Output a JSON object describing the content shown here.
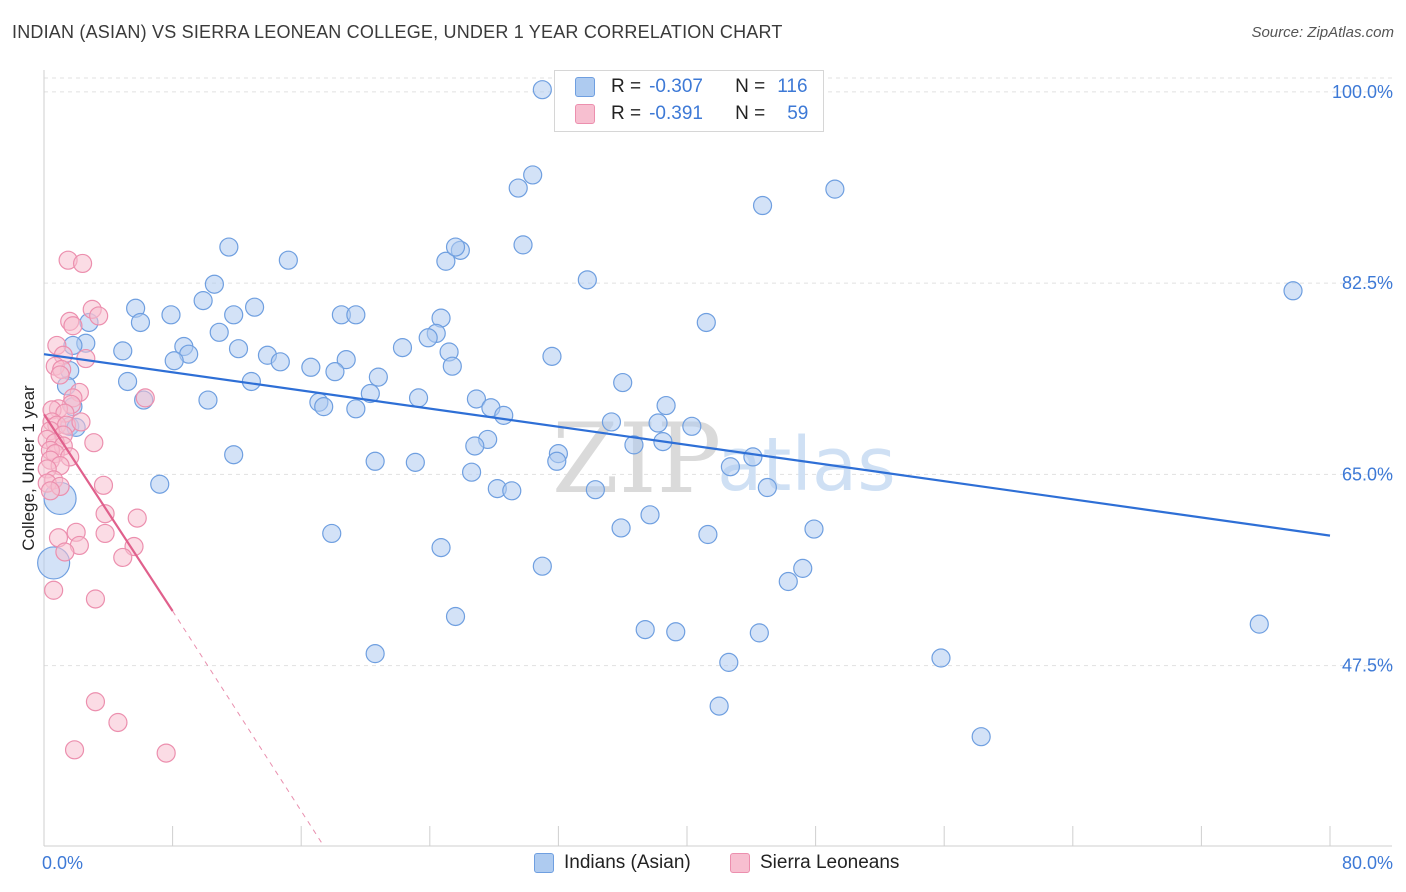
{
  "header": {
    "title": "INDIAN (ASIAN) VS SIERRA LEONEAN COLLEGE, UNDER 1 YEAR CORRELATION CHART",
    "source": "Source: ZipAtlas.com"
  },
  "watermark": {
    "zip": "ZIP",
    "atlas": "atlas"
  },
  "colors": {
    "blue_fill": "#aecbf0",
    "blue_stroke": "#6f9fe0",
    "blue_line": "#2e6fd6",
    "pink_fill": "#f7bfd0",
    "pink_stroke": "#ec8fae",
    "pink_line": "#e0608c",
    "axis_text": "#3d79d6"
  },
  "legend": {
    "rows": [
      {
        "r_label": "R =",
        "r_value": "-0.307",
        "n_label": "N =",
        "n_value": "116"
      },
      {
        "r_label": "R =",
        "r_value": "-0.391",
        "n_label": "N =",
        "n_value": "59"
      }
    ]
  },
  "bottom_legend": {
    "blue": "Indians (Asian)",
    "pink": "Sierra Leoneans"
  },
  "chart_data": {
    "type": "scatter",
    "title": "INDIAN (ASIAN) VS SIERRA LEONEAN COLLEGE, UNDER 1 YEAR CORRELATION CHART",
    "xlabel": "",
    "ylabel": "College, Under 1 year",
    "xlim": [
      0,
      80
    ],
    "ylim": [
      31,
      102
    ],
    "x_tick_labels": [
      "0.0%",
      "80.0%"
    ],
    "y_ticks": [
      47.5,
      65.0,
      82.5,
      100.0
    ],
    "y_tick_labels": [
      "47.5%",
      "65.0%",
      "82.5%",
      "100.0%"
    ],
    "grid": true,
    "legend_position": "top-center",
    "series": [
      {
        "name": "Indians (Asian)",
        "color": "#aecbf0",
        "trend": {
          "x": [
            0,
            80
          ],
          "y": [
            76.0,
            59.4
          ],
          "style": "solid"
        },
        "points": [
          [
            31,
            100.2
          ],
          [
            30.4,
            92.4
          ],
          [
            29.5,
            91.2
          ],
          [
            49.2,
            91.1
          ],
          [
            44.7,
            89.6
          ],
          [
            11.5,
            85.8
          ],
          [
            15.2,
            84.6
          ],
          [
            25.9,
            85.5
          ],
          [
            25.0,
            84.5
          ],
          [
            25.6,
            85.8
          ],
          [
            29.8,
            86.0
          ],
          [
            33.8,
            82.8
          ],
          [
            10.6,
            82.4
          ],
          [
            77.7,
            81.8
          ],
          [
            9.9,
            80.9
          ],
          [
            13.1,
            80.3
          ],
          [
            5.7,
            80.2
          ],
          [
            7.9,
            79.6
          ],
          [
            11.8,
            79.6
          ],
          [
            18.5,
            79.6
          ],
          [
            19.4,
            79.6
          ],
          [
            24.7,
            79.3
          ],
          [
            2.8,
            78.9
          ],
          [
            6.0,
            78.9
          ],
          [
            10.9,
            78.0
          ],
          [
            24.4,
            77.9
          ],
          [
            23.9,
            77.5
          ],
          [
            41.2,
            78.9
          ],
          [
            2.6,
            77.0
          ],
          [
            1.8,
            76.8
          ],
          [
            8.7,
            76.7
          ],
          [
            12.1,
            76.5
          ],
          [
            4.9,
            76.3
          ],
          [
            9.0,
            76.0
          ],
          [
            22.3,
            76.6
          ],
          [
            13.9,
            75.9
          ],
          [
            14.7,
            75.3
          ],
          [
            18.8,
            75.5
          ],
          [
            25.2,
            76.2
          ],
          [
            8.1,
            75.4
          ],
          [
            31.6,
            75.8
          ],
          [
            1.6,
            74.5
          ],
          [
            16.6,
            74.8
          ],
          [
            18.1,
            74.4
          ],
          [
            25.4,
            74.9
          ],
          [
            20.8,
            73.9
          ],
          [
            5.2,
            73.5
          ],
          [
            1.4,
            73.1
          ],
          [
            36.0,
            73.4
          ],
          [
            12.9,
            73.5
          ],
          [
            20.3,
            72.4
          ],
          [
            23.3,
            72.0
          ],
          [
            6.2,
            71.8
          ],
          [
            1.8,
            71.2
          ],
          [
            10.2,
            71.8
          ],
          [
            26.9,
            71.9
          ],
          [
            17.1,
            71.6
          ],
          [
            17.4,
            71.2
          ],
          [
            19.4,
            71.0
          ],
          [
            27.8,
            71.1
          ],
          [
            28.6,
            70.4
          ],
          [
            38.7,
            71.3
          ],
          [
            35.3,
            69.8
          ],
          [
            38.2,
            69.7
          ],
          [
            40.3,
            69.4
          ],
          [
            1.6,
            69.4
          ],
          [
            2.0,
            69.3
          ],
          [
            36.7,
            67.7
          ],
          [
            38.5,
            68.0
          ],
          [
            27.6,
            68.2
          ],
          [
            26.8,
            67.6
          ],
          [
            44.1,
            66.6
          ],
          [
            32.0,
            66.9
          ],
          [
            31.9,
            66.2
          ],
          [
            11.8,
            66.8
          ],
          [
            20.6,
            66.2
          ],
          [
            23.1,
            66.1
          ],
          [
            42.7,
            65.7
          ],
          [
            26.6,
            65.2
          ],
          [
            45.0,
            63.8
          ],
          [
            7.2,
            64.1
          ],
          [
            28.2,
            63.7
          ],
          [
            29.1,
            63.5
          ],
          [
            34.3,
            63.6
          ],
          [
            1.0,
            62.8
          ],
          [
            37.7,
            61.3
          ],
          [
            35.9,
            60.1
          ],
          [
            47.9,
            60.0
          ],
          [
            41.3,
            59.5
          ],
          [
            17.9,
            59.6
          ],
          [
            24.7,
            58.3
          ],
          [
            0.6,
            56.9
          ],
          [
            31.0,
            56.6
          ],
          [
            47.2,
            56.4
          ],
          [
            46.3,
            55.2
          ],
          [
            75.6,
            51.3
          ],
          [
            25.6,
            52.0
          ],
          [
            37.4,
            50.8
          ],
          [
            39.3,
            50.6
          ],
          [
            44.5,
            50.5
          ],
          [
            20.6,
            48.6
          ],
          [
            42.6,
            47.8
          ],
          [
            55.8,
            48.2
          ],
          [
            42.0,
            43.8
          ],
          [
            58.3,
            41.0
          ]
        ]
      },
      {
        "name": "Sierra Leoneans",
        "color": "#f7bfd0",
        "trend": {
          "x": [
            0,
            8
          ],
          "y": [
            70.5,
            52.5
          ],
          "style": "solid",
          "extended_x": [
            8,
            17.4
          ],
          "extended_y": [
            52.5,
            31.0
          ]
        },
        "points": [
          [
            1.5,
            84.6
          ],
          [
            2.4,
            84.3
          ],
          [
            3.0,
            80.1
          ],
          [
            3.4,
            79.5
          ],
          [
            1.6,
            79.0
          ],
          [
            1.8,
            78.6
          ],
          [
            0.8,
            76.8
          ],
          [
            1.2,
            75.9
          ],
          [
            2.6,
            75.6
          ],
          [
            0.7,
            74.9
          ],
          [
            1.1,
            74.6
          ],
          [
            1.0,
            74.1
          ],
          [
            2.2,
            72.5
          ],
          [
            1.8,
            72.0
          ],
          [
            6.3,
            72.0
          ],
          [
            1.7,
            71.4
          ],
          [
            0.9,
            71.0
          ],
          [
            0.5,
            70.9
          ],
          [
            1.3,
            70.6
          ],
          [
            0.5,
            69.8
          ],
          [
            0.8,
            69.5
          ],
          [
            1.4,
            69.5
          ],
          [
            2.3,
            69.8
          ],
          [
            0.4,
            69.0
          ],
          [
            1.2,
            68.6
          ],
          [
            0.2,
            68.2
          ],
          [
            0.7,
            67.9
          ],
          [
            3.1,
            67.9
          ],
          [
            1.2,
            67.6
          ],
          [
            0.4,
            67.2
          ],
          [
            0.7,
            66.9
          ],
          [
            1.6,
            66.6
          ],
          [
            0.4,
            66.3
          ],
          [
            1.0,
            65.8
          ],
          [
            0.2,
            65.5
          ],
          [
            0.6,
            64.5
          ],
          [
            0.2,
            64.2
          ],
          [
            1.0,
            63.9
          ],
          [
            3.7,
            64.0
          ],
          [
            0.4,
            63.5
          ],
          [
            3.8,
            61.4
          ],
          [
            5.8,
            61.0
          ],
          [
            2.0,
            59.7
          ],
          [
            3.8,
            59.6
          ],
          [
            0.9,
            59.2
          ],
          [
            2.2,
            58.5
          ],
          [
            5.6,
            58.4
          ],
          [
            1.3,
            57.9
          ],
          [
            4.9,
            57.4
          ],
          [
            0.6,
            54.4
          ],
          [
            3.2,
            53.6
          ],
          [
            3.2,
            44.2
          ],
          [
            4.6,
            42.3
          ],
          [
            1.9,
            39.8
          ],
          [
            7.6,
            39.5
          ]
        ]
      }
    ]
  }
}
